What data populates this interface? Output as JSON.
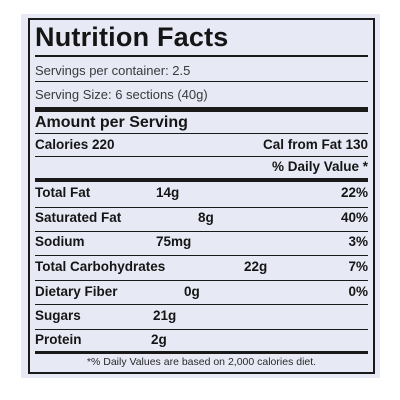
{
  "title": "Nutrition Facts",
  "servings_per_container": "Servings per container: 2.5",
  "serving_size": "Serving Size: 6 sections (40g)",
  "amount_per_serving": "Amount per Serving",
  "calories": "Calories 220",
  "cal_from_fat": "Cal from Fat 130",
  "daily_value_header": "% Daily Value *",
  "nutrients": [
    {
      "name": "Total Fat",
      "amount": "14g",
      "dv": "22%"
    },
    {
      "name": "Saturated Fat",
      "amount": "8g",
      "dv": "40%"
    },
    {
      "name": "Sodium",
      "amount": "75mg",
      "dv": "3%"
    },
    {
      "name": "Total Carbohydrates",
      "amount": "22g",
      "dv": "7%"
    },
    {
      "name": "Dietary Fiber",
      "amount": "0g",
      "dv": "0%"
    },
    {
      "name": "Sugars",
      "amount": "21g",
      "dv": ""
    },
    {
      "name": "Protein",
      "amount": "2g",
      "dv": ""
    }
  ],
  "footnote": "*% Daily Values are based on 2,000 calories diet."
}
